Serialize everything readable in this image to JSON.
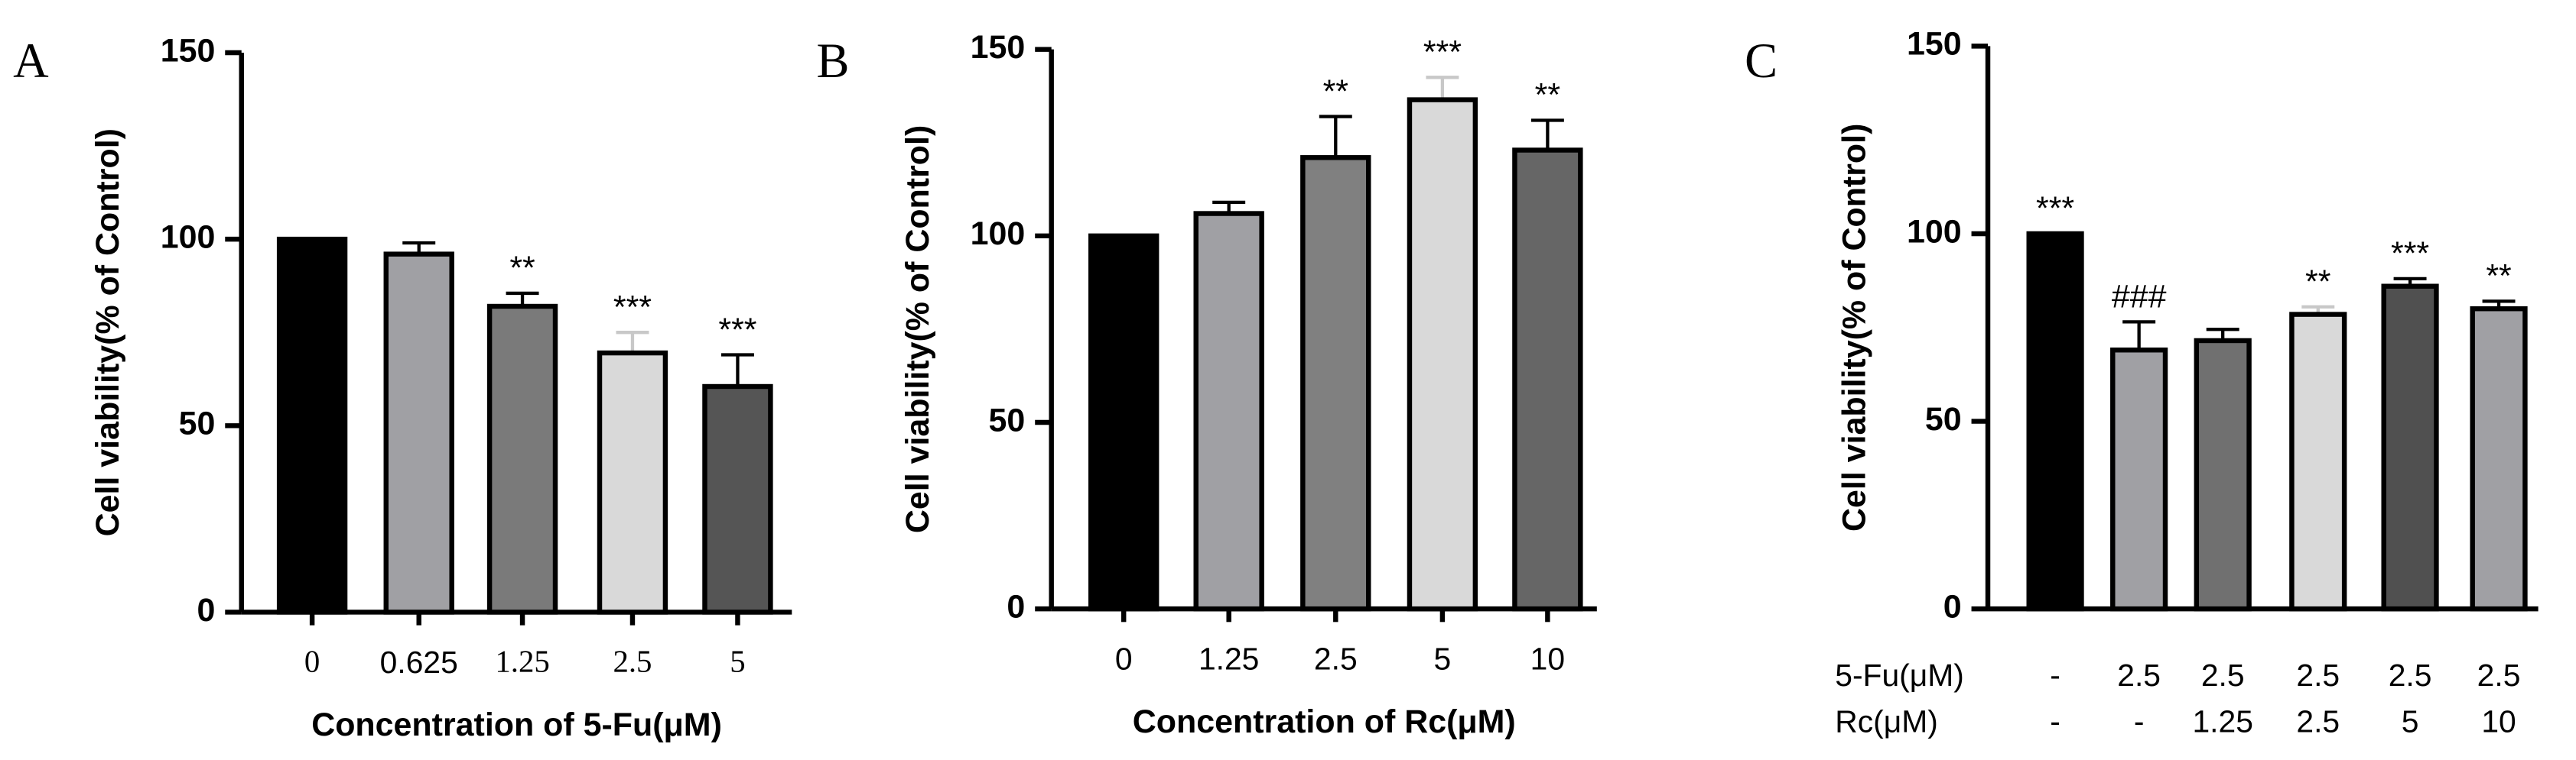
{
  "chart_data": [
    {
      "type": "bar",
      "panel": "A",
      "ylabel": "Cell viability(% of Control)",
      "xlabel": "Concentration of 5-Fu(μM)",
      "categories": [
        "0",
        "0.625",
        "1.25",
        "2.5",
        "5"
      ],
      "values": [
        100,
        96,
        82,
        69.5,
        60.5
      ],
      "errors": [
        0,
        3,
        3.5,
        5.5,
        8.5
      ],
      "annotations": [
        null,
        null,
        "**",
        "***",
        "***"
      ],
      "colors": [
        "#000000",
        "#a0a0a4",
        "#7a7a7a",
        "#d9d9d9",
        "#555555"
      ],
      "ylim": [
        0,
        150
      ],
      "yticks": [
        0,
        50,
        100,
        150
      ]
    },
    {
      "type": "bar",
      "panel": "B",
      "ylabel": "Cell viability(% of Control)",
      "xlabel": "Concentration of Rc(μM)",
      "categories": [
        "0",
        "1.25",
        "2.5",
        "5",
        "10"
      ],
      "values": [
        100,
        106,
        121,
        136.5,
        123
      ],
      "errors": [
        0,
        3,
        11,
        6,
        8
      ],
      "annotations": [
        null,
        null,
        "**",
        "***",
        "**"
      ],
      "colors": [
        "#000000",
        "#a0a0a4",
        "#808080",
        "#d9d9d9",
        "#666666"
      ],
      "ylim": [
        0,
        150
      ],
      "yticks": [
        0,
        50,
        100,
        150
      ]
    },
    {
      "type": "bar",
      "panel": "C",
      "ylabel": "Cell viability(% of Control)",
      "category_rows": [
        {
          "name": "5-Fu(μM)",
          "labels": [
            "-",
            "2.5",
            "2.5",
            "2.5",
            "2.5",
            "2.5"
          ]
        },
        {
          "name": "Rc(μM)",
          "labels": [
            "-",
            "-",
            "1.25",
            "2.5",
            "5",
            "10"
          ]
        }
      ],
      "values": [
        100,
        69,
        71.5,
        78.5,
        86,
        80
      ],
      "errors": [
        0,
        7.5,
        3,
        2,
        2,
        2
      ],
      "annotations": [
        "***",
        "###",
        null,
        "**",
        "***",
        "**"
      ],
      "colors": [
        "#000000",
        "#a0a0a4",
        "#707070",
        "#d9d9d9",
        "#505050",
        "#a0a0a4"
      ],
      "ylim": [
        0,
        150
      ],
      "yticks": [
        0,
        50,
        100,
        150
      ]
    }
  ]
}
